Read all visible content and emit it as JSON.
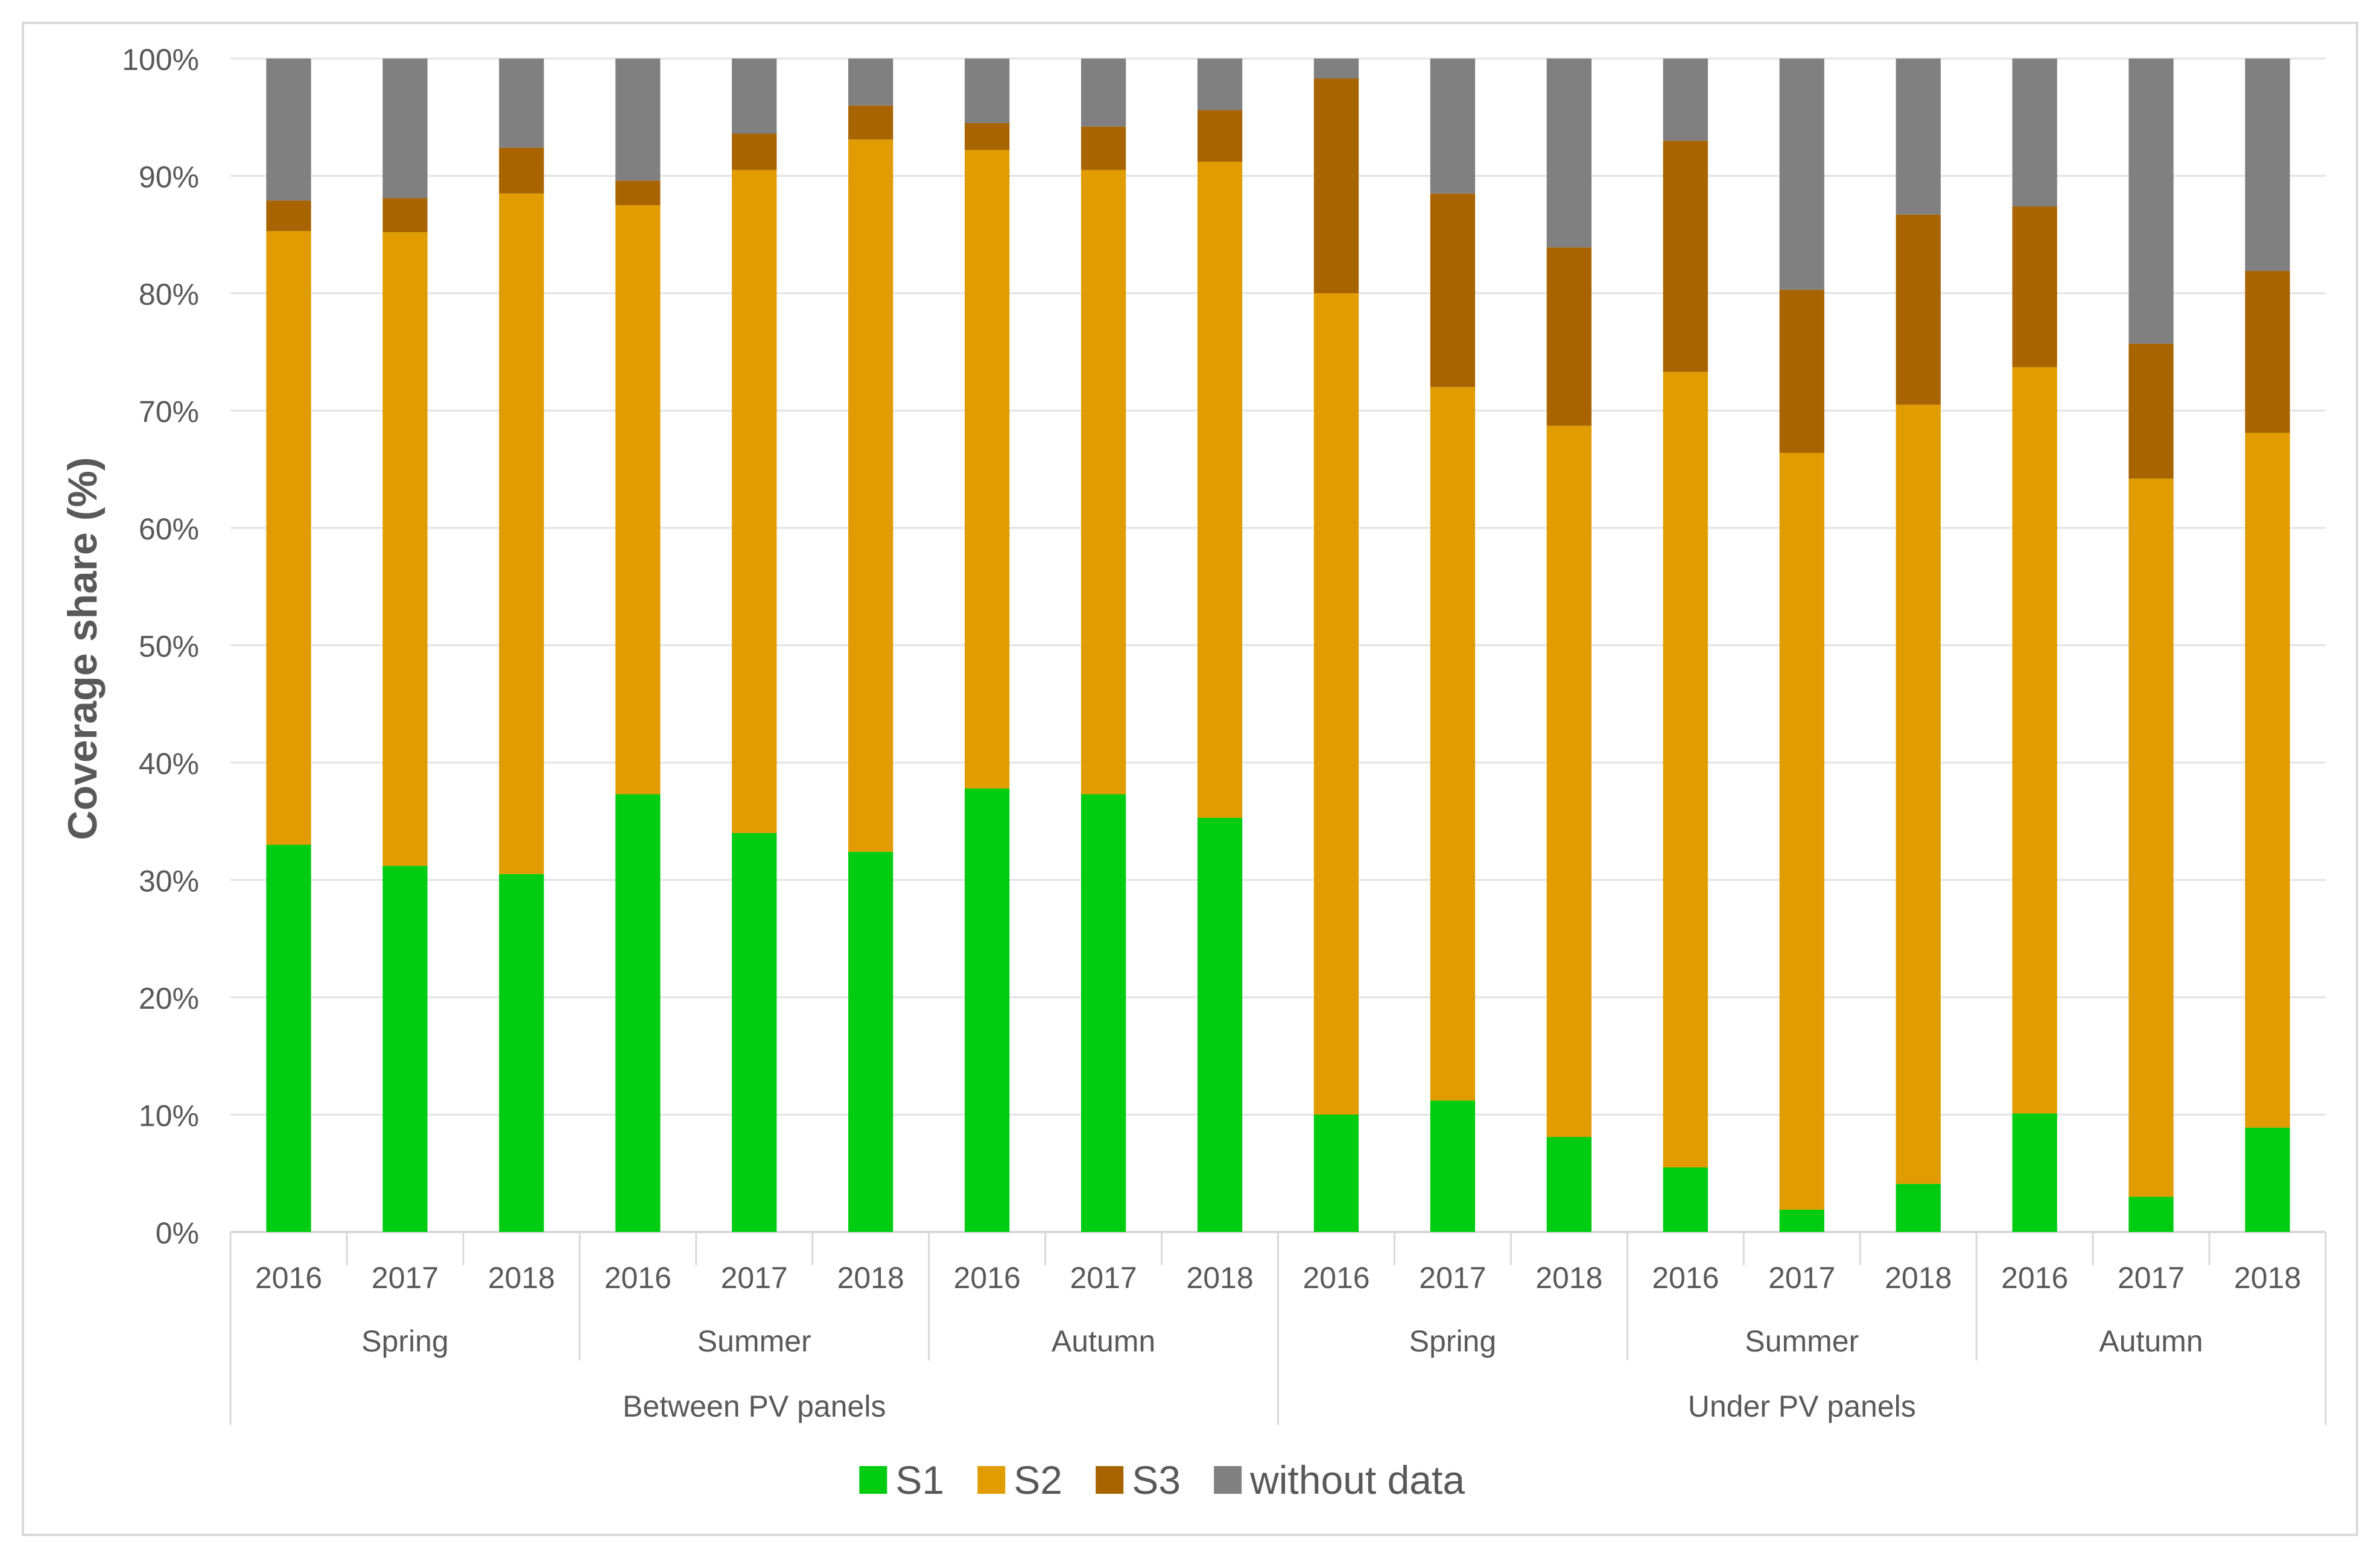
{
  "chart_data": {
    "type": "bar",
    "stacked": true,
    "percent_stacked": true,
    "title": "",
    "xlabel": "",
    "ylabel": "Coverage share (%)",
    "ylim": [
      0,
      100
    ],
    "y_ticks": [
      "0%",
      "10%",
      "20%",
      "30%",
      "40%",
      "50%",
      "60%",
      "70%",
      "80%",
      "90%",
      "100%"
    ],
    "grid": true,
    "legend_position": "bottom-center",
    "groups": [
      {
        "label": "Between PV panels",
        "seasons": [
          {
            "label": "Spring",
            "years": [
              "2016",
              "2017",
              "2018"
            ]
          },
          {
            "label": "Summer",
            "years": [
              "2016",
              "2017",
              "2018"
            ]
          },
          {
            "label": "Autumn",
            "years": [
              "2016",
              "2017",
              "2018"
            ]
          }
        ]
      },
      {
        "label": "Under PV panels",
        "seasons": [
          {
            "label": "Spring",
            "years": [
              "2016",
              "2017",
              "2018"
            ]
          },
          {
            "label": "Summer",
            "years": [
              "2016",
              "2017",
              "2018"
            ]
          },
          {
            "label": "Autumn",
            "years": [
              "2016",
              "2017",
              "2018"
            ]
          }
        ]
      }
    ],
    "series": [
      {
        "name": "S1",
        "color": "#00cc11",
        "values": [
          33.0,
          31.2,
          30.5,
          37.3,
          34.0,
          32.4,
          37.8,
          37.3,
          35.3,
          10.0,
          11.2,
          8.1,
          5.5,
          1.9,
          4.1,
          10.1,
          3.0,
          8.9
        ]
      },
      {
        "name": "S2",
        "color": "#e09c00",
        "values": [
          52.3,
          54.0,
          58.0,
          50.2,
          56.5,
          60.7,
          54.4,
          53.2,
          55.9,
          70.0,
          60.8,
          60.6,
          67.8,
          64.5,
          66.4,
          63.6,
          61.2,
          59.2
        ]
      },
      {
        "name": "S3",
        "color": "#a86400",
        "values": [
          2.6,
          2.9,
          3.9,
          2.1,
          3.1,
          2.9,
          2.3,
          3.7,
          4.4,
          18.3,
          16.5,
          15.2,
          19.7,
          13.9,
          16.2,
          13.7,
          11.5,
          13.8
        ]
      },
      {
        "name": "without data",
        "color": "#808080",
        "values": [
          12.1,
          11.9,
          7.6,
          10.4,
          6.4,
          4.0,
          5.5,
          5.8,
          4.4,
          1.7,
          11.5,
          16.1,
          7.0,
          19.7,
          13.3,
          12.6,
          24.3,
          18.1
        ]
      }
    ]
  }
}
